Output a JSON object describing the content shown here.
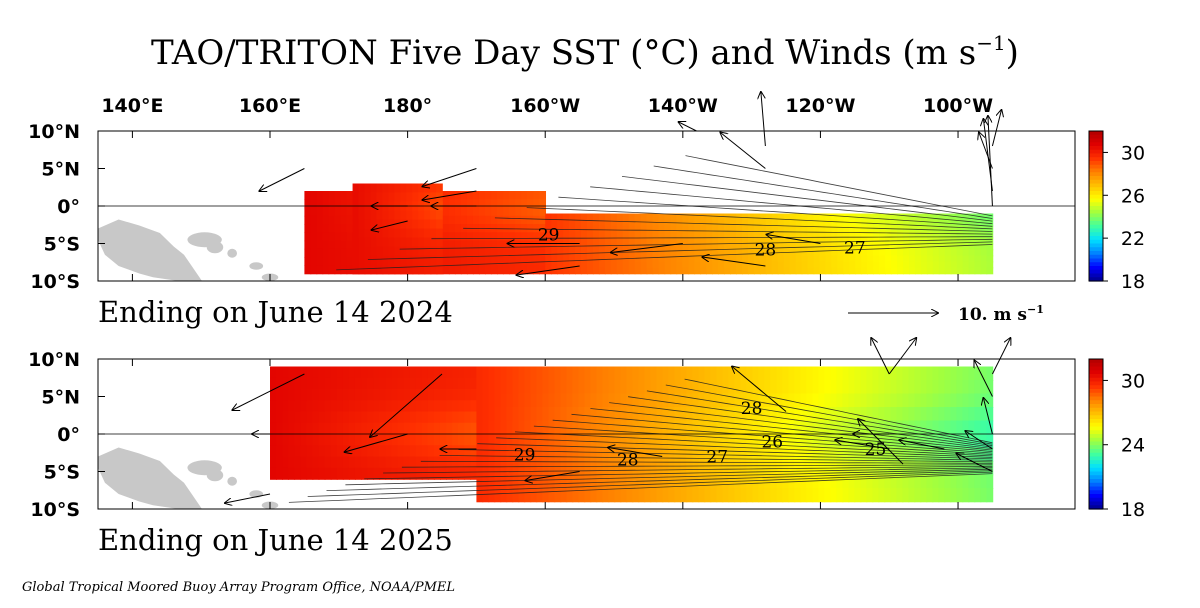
{
  "chart_data": {
    "type": "heatmap",
    "title": "TAO/TRITON Five Day SST (°C) and Winds (m s",
    "title_superscript": "−1",
    "title_suffix": ")",
    "x_tick_labels": [
      "140°E",
      "160°E",
      "180°",
      "160°W",
      "140°W",
      "120°W",
      "100°W"
    ],
    "x_tick_values": [
      140,
      160,
      180,
      200,
      220,
      240,
      260
    ],
    "y_tick_labels": [
      "10°N",
      "5°N",
      "0°",
      "5°S",
      "10°S"
    ],
    "y_tick_values": [
      10,
      5,
      0,
      -5,
      -10
    ],
    "xlim": [
      135,
      277
    ],
    "ylim": [
      -10,
      10
    ],
    "wind_scale_label": "10.  m s",
    "wind_scale_superscript": "−1",
    "wind_scale_value": 10,
    "colorscale": [
      "#00008b",
      "#0000ff",
      "#0080ff",
      "#00e0ff",
      "#40ffa0",
      "#a0ff40",
      "#ffff00",
      "#ffc000",
      "#ff8000",
      "#ff3000",
      "#e00000",
      "#b00000"
    ],
    "panels": [
      {
        "subtitle": "Ending on June 14 2024",
        "colorbar_ticks": [
          "30",
          "26",
          "22",
          "18"
        ],
        "colorbar_tick_values": [
          30,
          26,
          22,
          18
        ],
        "colorbar_range": [
          18,
          32
        ],
        "contour_labels": [
          {
            "text": "29",
            "lon": 200.5,
            "lat": -3.8
          },
          {
            "text": "28",
            "lon": 232,
            "lat": -5.8
          },
          {
            "text": "27",
            "lon": 245,
            "lat": -5.5
          }
        ],
        "sst_regions": [
          {
            "lon": [
              165,
              200
            ],
            "lat": [
              -9,
              2
            ],
            "west_temp": 30.6,
            "east_temp": 29.6
          },
          {
            "lon": [
              172,
              185
            ],
            "lat": [
              -9,
              3
            ],
            "west_temp": 30.4,
            "east_temp": 29.9
          },
          {
            "lon": [
              200,
              265
            ],
            "lat": [
              -9,
              -1
            ],
            "west_temp": 29.4,
            "east_temp": 24.5
          }
        ],
        "winds": [
          {
            "lon": 165,
            "lat": 5,
            "u": -5,
            "v": -2.5
          },
          {
            "lon": 180,
            "lat": 0,
            "u": -4,
            "v": 0
          },
          {
            "lon": 180,
            "lat": -2,
            "u": -4,
            "v": -1
          },
          {
            "lon": 190,
            "lat": 5,
            "u": -6,
            "v": -2
          },
          {
            "lon": 190,
            "lat": 0,
            "u": -5,
            "v": 0
          },
          {
            "lon": 190,
            "lat": 2,
            "u": -6,
            "v": -1
          },
          {
            "lon": 205,
            "lat": -5,
            "u": -8,
            "v": 0
          },
          {
            "lon": 205,
            "lat": -8,
            "u": -7,
            "v": -1
          },
          {
            "lon": 220,
            "lat": -5,
            "u": -8,
            "v": -1
          },
          {
            "lon": 222,
            "lat": 10,
            "u": -2,
            "v": 1
          },
          {
            "lon": 232,
            "lat": 5,
            "u": -5,
            "v": 4
          },
          {
            "lon": 232,
            "lat": -8,
            "u": -7,
            "v": 1
          },
          {
            "lon": 240,
            "lat": -5,
            "u": -6,
            "v": 1
          },
          {
            "lon": 232,
            "lat": 8,
            "u": -0.5,
            "v": 6
          },
          {
            "lon": 265,
            "lat": 0,
            "u": -0.5,
            "v": 10
          },
          {
            "lon": 265,
            "lat": 2,
            "u": -1,
            "v": 8
          },
          {
            "lon": 265,
            "lat": 5,
            "u": -1.5,
            "v": 4
          },
          {
            "lon": 265,
            "lat": 8,
            "u": 1,
            "v": 4
          }
        ]
      },
      {
        "subtitle": "Ending on June 14 2025",
        "colorbar_ticks": [
          "30",
          "24",
          "18"
        ],
        "colorbar_tick_values": [
          30,
          24,
          18
        ],
        "colorbar_range": [
          18,
          32
        ],
        "contour_labels": [
          {
            "text": "29",
            "lon": 197,
            "lat": -2.7
          },
          {
            "text": "28",
            "lon": 212,
            "lat": -3.4
          },
          {
            "text": "27",
            "lon": 225,
            "lat": -3
          },
          {
            "text": "26",
            "lon": 233,
            "lat": -1
          },
          {
            "text": "25",
            "lon": 248,
            "lat": -2
          },
          {
            "text": "28",
            "lon": 230,
            "lat": 3.5
          }
        ],
        "sst_regions": [
          {
            "lon": [
              160,
              190
            ],
            "lat": [
              -6,
              9
            ],
            "west_temp": 30.6,
            "east_temp": 29.8
          },
          {
            "lon": [
              190,
              265
            ],
            "lat": [
              -9,
              9
            ],
            "west_temp": 29.6,
            "east_temp": 23.8
          }
        ],
        "winds": [
          {
            "lon": 165,
            "lat": 8,
            "u": -8,
            "v": -4
          },
          {
            "lon": 160,
            "lat": 0,
            "u": -2,
            "v": 0
          },
          {
            "lon": 160,
            "lat": -8,
            "u": -5,
            "v": -1
          },
          {
            "lon": 180,
            "lat": 0,
            "u": -7,
            "v": -2
          },
          {
            "lon": 185,
            "lat": 8,
            "u": -8,
            "v": -7
          },
          {
            "lon": 190,
            "lat": -2,
            "u": -4,
            "v": 0
          },
          {
            "lon": 205,
            "lat": -5,
            "u": -6,
            "v": -1
          },
          {
            "lon": 217,
            "lat": -3,
            "u": -6,
            "v": 1
          },
          {
            "lon": 235,
            "lat": 3,
            "u": -6,
            "v": 5
          },
          {
            "lon": 250,
            "lat": 8,
            "u": -2,
            "v": 4
          },
          {
            "lon": 250,
            "lat": 8,
            "u": 3,
            "v": 4
          },
          {
            "lon": 250,
            "lat": 0,
            "u": -4,
            "v": 0
          },
          {
            "lon": 250,
            "lat": -2,
            "u": -6,
            "v": 1
          },
          {
            "lon": 252,
            "lat": -4,
            "u": -5,
            "v": 5
          },
          {
            "lon": 265,
            "lat": 8,
            "u": 2,
            "v": 4
          },
          {
            "lon": 265,
            "lat": 5,
            "u": -2,
            "v": 4
          },
          {
            "lon": 265,
            "lat": 0,
            "u": -1,
            "v": 4
          },
          {
            "lon": 265,
            "lat": -2,
            "u": -3,
            "v": 2
          },
          {
            "lon": 265,
            "lat": -5,
            "u": -4,
            "v": 2
          },
          {
            "lon": 258,
            "lat": -2,
            "u": -5,
            "v": 1
          }
        ]
      }
    ]
  },
  "footer_text": "Global Tropical Moored Buoy Array Program Office, NOAA/PMEL",
  "colors": {
    "land": "#c8c8c8",
    "axis": "#000000",
    "contour": "#202020",
    "arrow": "#000000"
  }
}
